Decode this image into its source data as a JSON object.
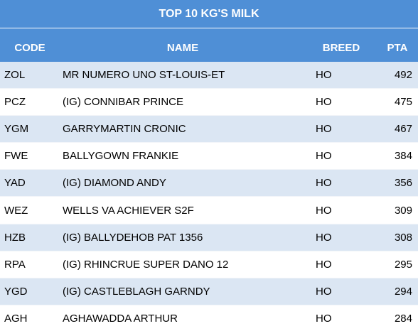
{
  "title": "TOP 10 KG'S MILK",
  "columns": {
    "code": "CODE",
    "name": "NAME",
    "breed": "BREED",
    "pta": "PTA"
  },
  "rows": [
    {
      "code": "ZOL",
      "name": "MR NUMERO UNO ST-LOUIS-ET",
      "breed": "HO",
      "pta": "492"
    },
    {
      "code": "PCZ",
      "name": "(IG) CONNIBAR PRINCE",
      "breed": "HO",
      "pta": "475"
    },
    {
      "code": "YGM",
      "name": "GARRYMARTIN CRONIC",
      "breed": "HO",
      "pta": "467"
    },
    {
      "code": "FWE",
      "name": "BALLYGOWN FRANKIE",
      "breed": "HO",
      "pta": "384"
    },
    {
      "code": "YAD",
      "name": "(IG) DIAMOND ANDY",
      "breed": "HO",
      "pta": "356"
    },
    {
      "code": "WEZ",
      "name": "WELLS VA ACHIEVER S2F",
      "breed": "HO",
      "pta": "309"
    },
    {
      "code": "HZB",
      "name": "(IG) BALLYDEHOB PAT 1356",
      "breed": "HO",
      "pta": "308"
    },
    {
      "code": "RPA",
      "name": "(IG) RHINCRUE SUPER DANO 12",
      "breed": "HO",
      "pta": "295"
    },
    {
      "code": "YGD",
      "name": "(IG) CASTLEBLAGH GARNDY",
      "breed": "HO",
      "pta": "294"
    },
    {
      "code": "AGH",
      "name": "AGHAWADDA ARTHUR",
      "breed": "HO",
      "pta": "284"
    }
  ],
  "colors": {
    "header": "#4f8fd6",
    "band": "#dbe6f3",
    "plain": "#ffffff"
  }
}
